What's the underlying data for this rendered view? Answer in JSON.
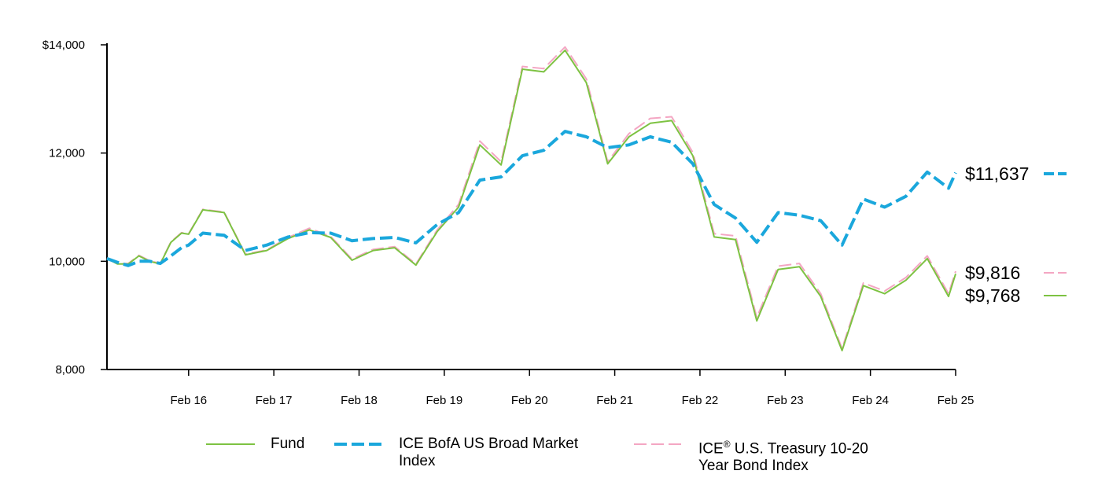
{
  "chart_data": {
    "type": "line",
    "title": "",
    "xlabel": "",
    "ylabel": "",
    "ylim": [
      8000,
      14000
    ],
    "y_ticks": [
      "$14,000",
      "12,000",
      "10,000",
      "8,000"
    ],
    "y_tick_values": [
      14000,
      12000,
      10000,
      8000
    ],
    "x_ticks": [
      "Feb 16",
      "Feb 17",
      "Feb 18",
      "Feb 19",
      "Feb 20",
      "Feb 21",
      "Feb 22",
      "Feb 23",
      "Feb 24",
      "Feb 25"
    ],
    "x_tick_values": [
      2016.083,
      2017.083,
      2018.083,
      2019.083,
      2020.083,
      2021.083,
      2022.083,
      2023.083,
      2024.083,
      2025.083
    ],
    "xlim": [
      2015.125,
      2025.083
    ],
    "grid": false,
    "legend_position": "bottom",
    "series": [
      {
        "name": "Fund",
        "color": "#7dc242",
        "style": "solid",
        "end_label": "$9,768",
        "x": [
          2015.125,
          2015.25,
          2015.375,
          2015.5,
          2015.625,
          2015.75,
          2015.875,
          2016.0,
          2016.083,
          2016.25,
          2016.5,
          2016.75,
          2017.0,
          2017.25,
          2017.5,
          2017.75,
          2018.0,
          2018.25,
          2018.5,
          2018.75,
          2019.0,
          2019.25,
          2019.5,
          2019.75,
          2020.0,
          2020.25,
          2020.5,
          2020.75,
          2021.0,
          2021.25,
          2021.5,
          2021.75,
          2022.0,
          2022.25,
          2022.5,
          2022.75,
          2023.0,
          2023.25,
          2023.5,
          2023.75,
          2024.0,
          2024.25,
          2024.5,
          2024.75,
          2025.0,
          2025.083
        ],
        "values": [
          10050,
          9950,
          9950,
          10100,
          10000,
          9950,
          10350,
          10520,
          10500,
          10950,
          10900,
          10120,
          10200,
          10420,
          10580,
          10440,
          10020,
          10200,
          10250,
          9930,
          10550,
          11000,
          12150,
          11780,
          13550,
          13500,
          13900,
          13300,
          11800,
          12300,
          12550,
          12600,
          11950,
          10450,
          10400,
          8900,
          9850,
          9900,
          9350,
          8350,
          9550,
          9400,
          9650,
          10050,
          9350,
          9768
        ]
      },
      {
        "name": "ICE BofA US Broad Market Index",
        "color": "#1aa7dc",
        "style": "dashed",
        "end_label": "$11,637",
        "x": [
          2015.125,
          2015.25,
          2015.375,
          2015.5,
          2015.625,
          2015.75,
          2015.875,
          2016.0,
          2016.083,
          2016.25,
          2016.5,
          2016.75,
          2017.0,
          2017.25,
          2017.5,
          2017.75,
          2018.0,
          2018.25,
          2018.5,
          2018.75,
          2019.0,
          2019.25,
          2019.5,
          2019.75,
          2020.0,
          2020.25,
          2020.5,
          2020.75,
          2021.0,
          2021.25,
          2021.5,
          2021.75,
          2022.0,
          2022.25,
          2022.5,
          2022.75,
          2023.0,
          2023.25,
          2023.5,
          2023.75,
          2024.0,
          2024.25,
          2024.5,
          2024.75,
          2025.0,
          2025.083
        ],
        "values": [
          10050,
          9980,
          9920,
          10000,
          10000,
          9960,
          10100,
          10250,
          10300,
          10520,
          10480,
          10200,
          10300,
          10450,
          10530,
          10520,
          10380,
          10420,
          10440,
          10340,
          10680,
          10900,
          11500,
          11560,
          11950,
          12050,
          12400,
          12300,
          12100,
          12150,
          12300,
          12200,
          11800,
          11050,
          10800,
          10350,
          10900,
          10850,
          10750,
          10300,
          11150,
          11000,
          11200,
          11650,
          11350,
          11637
        ]
      },
      {
        "name": "ICE® U.S. Treasury 10-20 Year Bond Index",
        "color": "#f4a6c3",
        "style": "dashed",
        "end_label": "$9,816",
        "x": [
          2015.125,
          2015.25,
          2015.375,
          2015.5,
          2015.625,
          2015.75,
          2015.875,
          2016.0,
          2016.083,
          2016.25,
          2016.5,
          2016.75,
          2017.0,
          2017.25,
          2017.5,
          2017.75,
          2018.0,
          2018.25,
          2018.5,
          2018.75,
          2019.0,
          2019.25,
          2019.5,
          2019.75,
          2020.0,
          2020.25,
          2020.5,
          2020.75,
          2021.0,
          2021.25,
          2021.5,
          2021.75,
          2022.0,
          2022.25,
          2022.5,
          2022.75,
          2023.0,
          2023.25,
          2023.5,
          2023.75,
          2024.0,
          2024.25,
          2024.5,
          2024.75,
          2025.0,
          2025.083
        ],
        "values": [
          10060,
          9960,
          9960,
          10110,
          10010,
          9960,
          10360,
          10530,
          10510,
          10960,
          10910,
          10130,
          10210,
          10440,
          10610,
          10460,
          10040,
          10220,
          10270,
          9950,
          10580,
          11050,
          12220,
          11840,
          13600,
          13560,
          13960,
          13370,
          11840,
          12360,
          12640,
          12670,
          12010,
          10510,
          10470,
          8960,
          9910,
          9960,
          9400,
          8390,
          9600,
          9450,
          9700,
          10100,
          9400,
          9816
        ]
      }
    ]
  },
  "legend": {
    "fund": "Fund",
    "broad_line1": "ICE BofA US Broad Market",
    "broad_line2": "Index",
    "treasury_prefix": "ICE",
    "treasury_sup": "®",
    "treasury_rest": " U.S. Treasury 10-20",
    "treasury_line2": "Year Bond Index"
  }
}
